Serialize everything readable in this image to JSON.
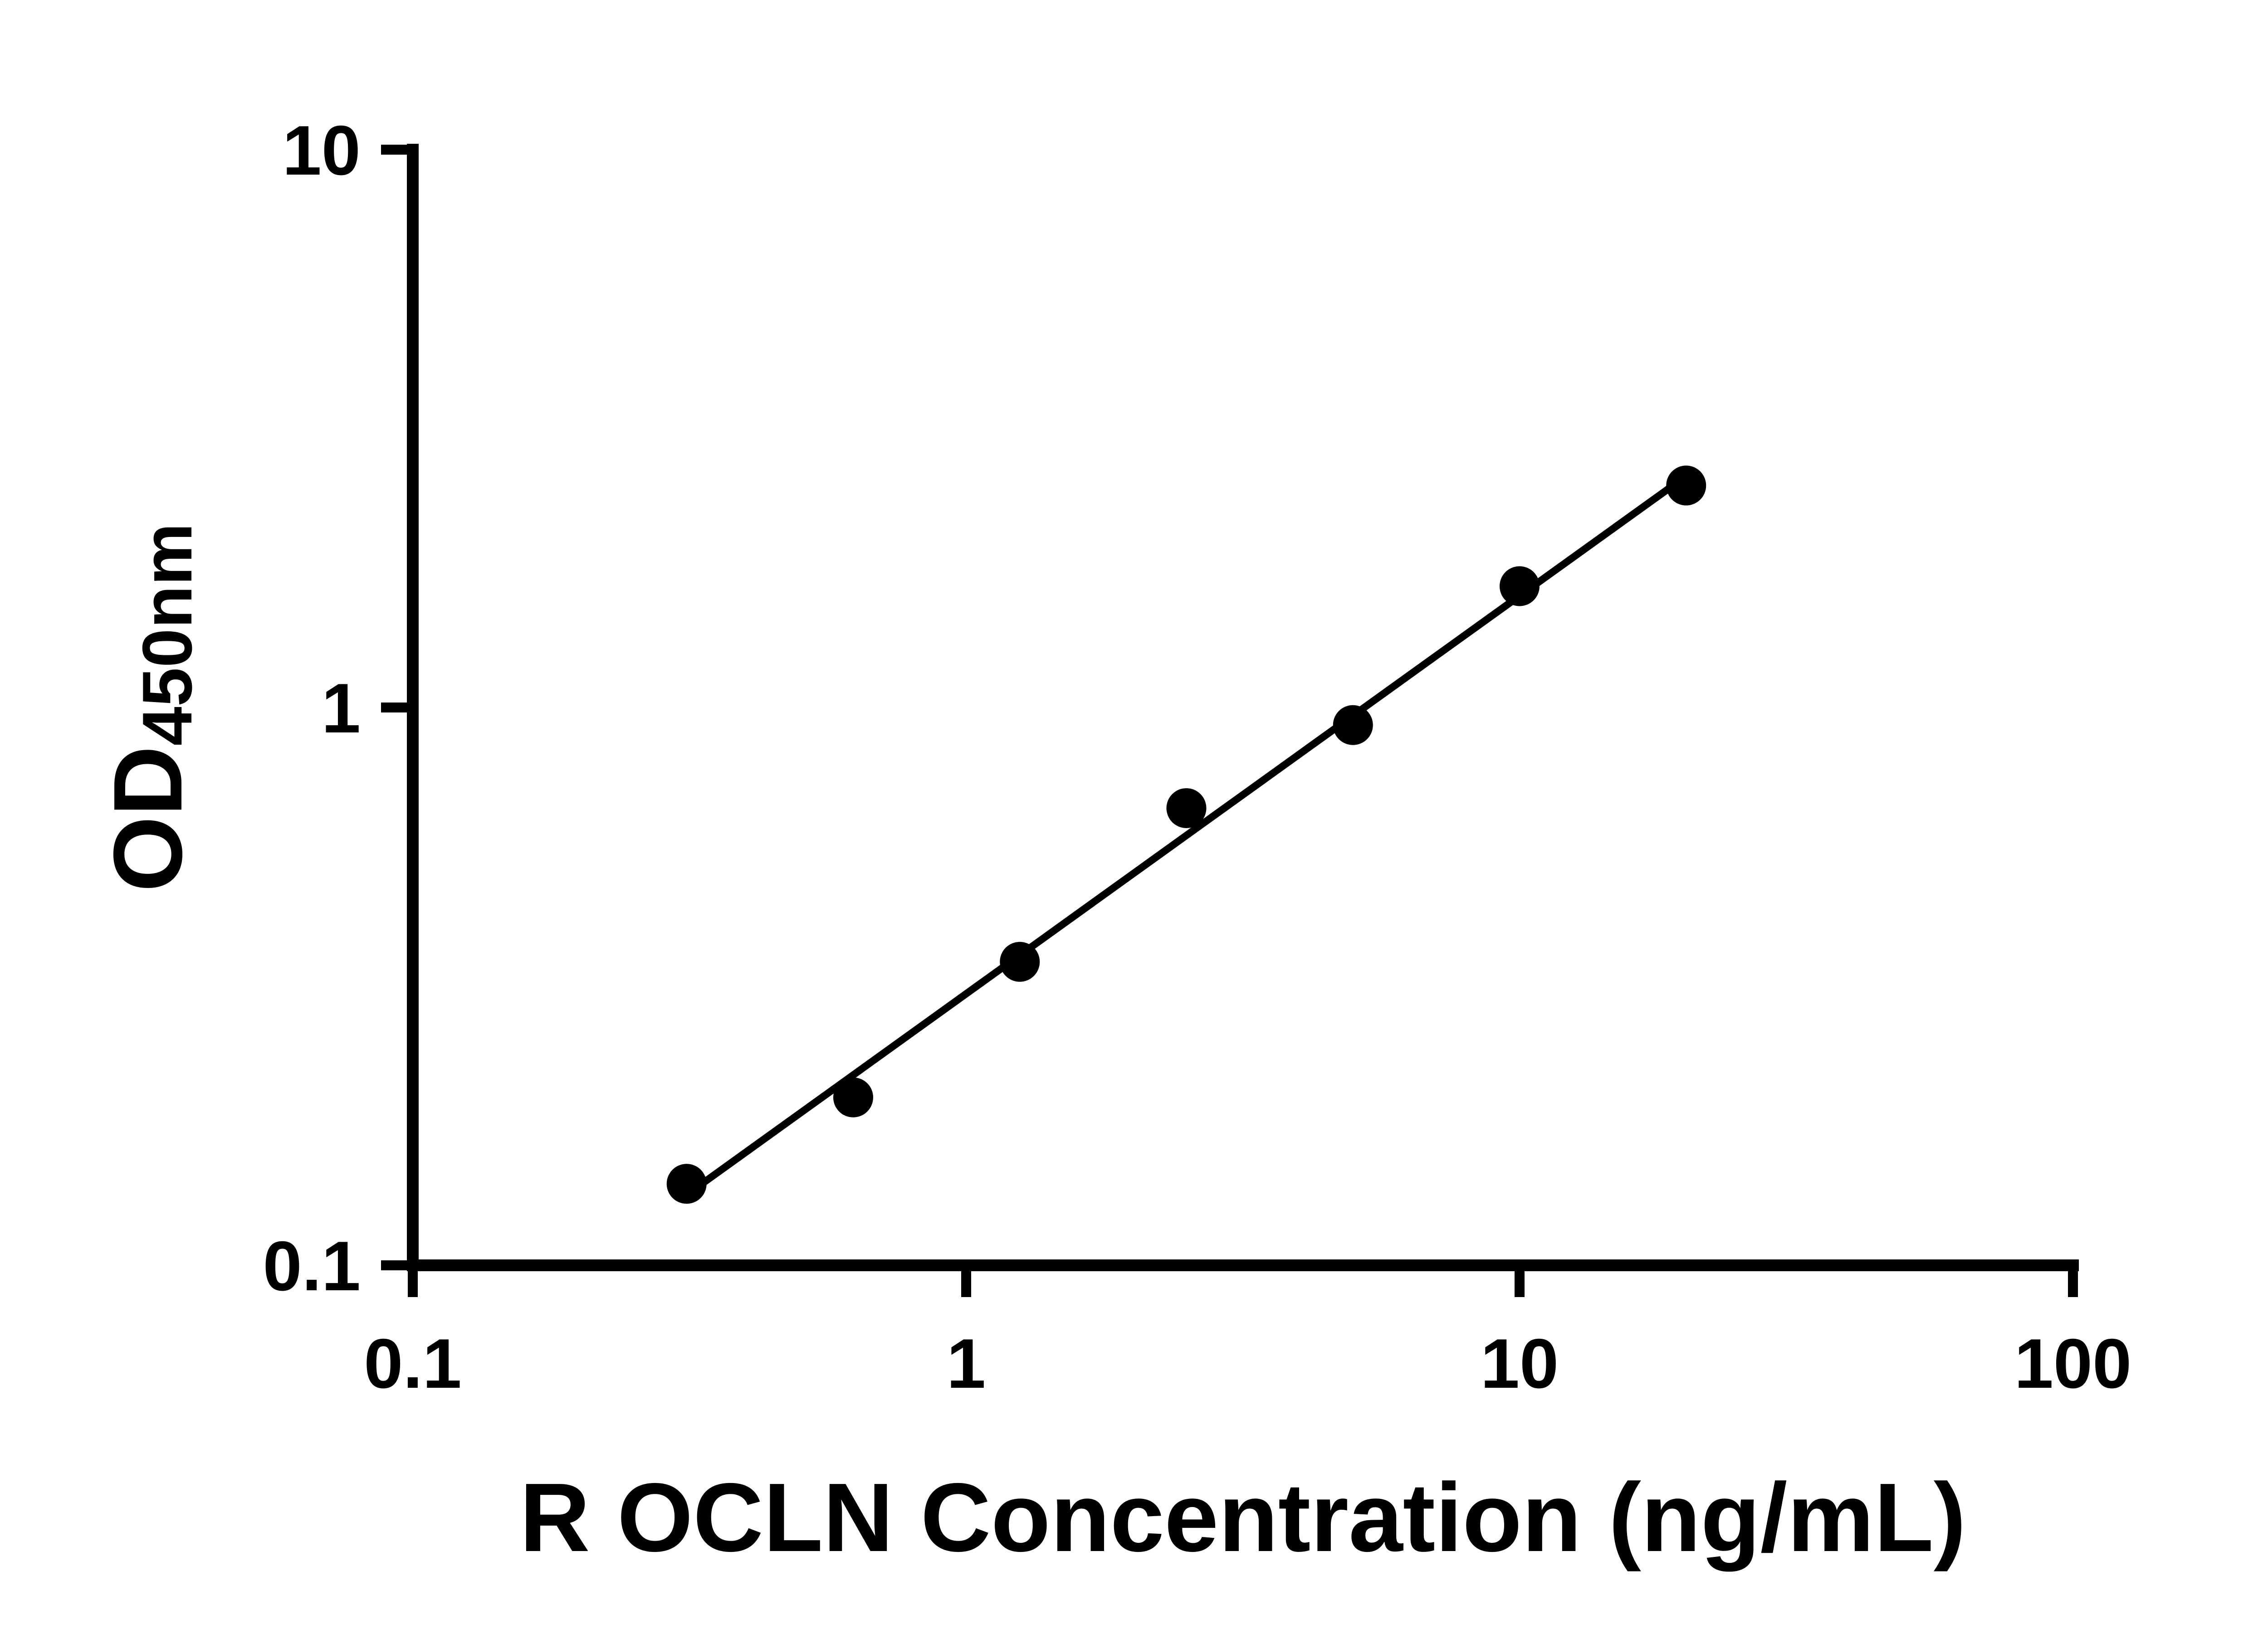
{
  "chart_data": {
    "type": "scatter",
    "title": "",
    "xlabel": "R OCLN Concentration (ng/mL)",
    "ylabel_main": "OD",
    "ylabel_sub": "450nm",
    "x": [
      0.3125,
      0.625,
      1.25,
      2.5,
      5,
      10,
      20
    ],
    "y": [
      0.14,
      0.2,
      0.35,
      0.66,
      0.93,
      1.65,
      2.5
    ],
    "xscale": "log",
    "yscale": "log",
    "xlim": [
      0.1,
      100
    ],
    "ylim": [
      0.1,
      10
    ],
    "x_ticks": [
      {
        "value": 0.1,
        "label": "0.1"
      },
      {
        "value": 1,
        "label": "1"
      },
      {
        "value": 10,
        "label": "10"
      },
      {
        "value": 100,
        "label": "100"
      }
    ],
    "y_ticks": [
      {
        "value": 0.1,
        "label": "0.1"
      },
      {
        "value": 1,
        "label": "1"
      },
      {
        "value": 10,
        "label": "10"
      }
    ],
    "trendline": true,
    "grid": false,
    "legend": "none",
    "marker_color": "#000000",
    "line_color": "#000000",
    "axis_color": "#000000",
    "background": "#ffffff"
  }
}
